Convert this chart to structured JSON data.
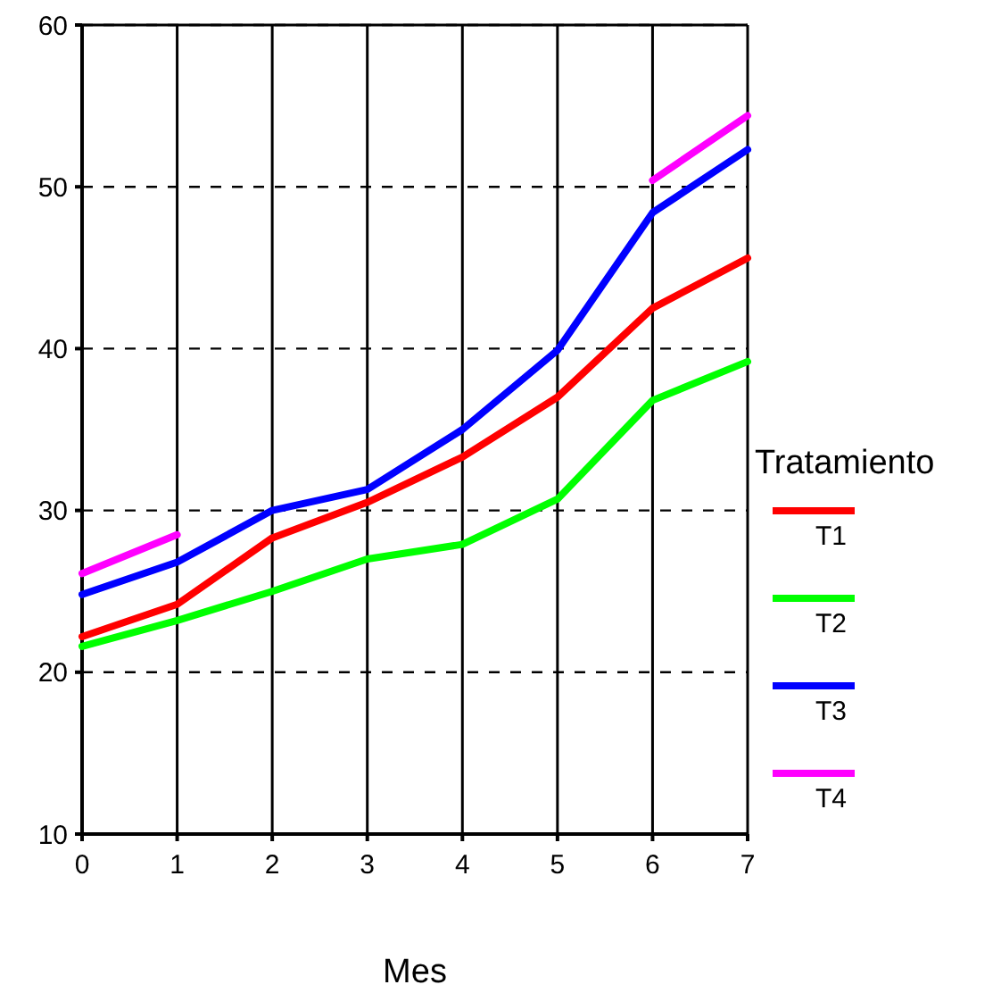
{
  "chart_data": {
    "type": "line",
    "xlabel": "Mes",
    "legend_title": "Tratamiento",
    "x": [
      0,
      1,
      2,
      3,
      4,
      5,
      6,
      7
    ],
    "xlim": [
      0,
      7
    ],
    "xticks": [
      0,
      1,
      2,
      3,
      4,
      5,
      6,
      7
    ],
    "ylim": [
      10,
      60
    ],
    "yticks": [
      10,
      20,
      30,
      40,
      50,
      60
    ],
    "grid": true,
    "legend": "right",
    "line_style": "solid",
    "marker": "none",
    "series": [
      {
        "name": "T1",
        "color": "#ff0000",
        "values": [
          22.2,
          24.2,
          28.3,
          30.5,
          33.3,
          37,
          42.5,
          45.6
        ]
      },
      {
        "name": "T2",
        "color": "#00ff00",
        "values": [
          21.6,
          23.2,
          25,
          27,
          27.9,
          30.7,
          36.8,
          39.2
        ]
      },
      {
        "name": "T3",
        "color": "#0000ff",
        "values": [
          24.8,
          26.8,
          30,
          31.3,
          35,
          39.9,
          48.4,
          52.3
        ]
      },
      {
        "name": "T4",
        "color": "#ff00ff",
        "values": [
          26.1,
          28.5,
          null,
          null,
          null,
          null,
          50.4,
          54.4
        ]
      }
    ]
  }
}
